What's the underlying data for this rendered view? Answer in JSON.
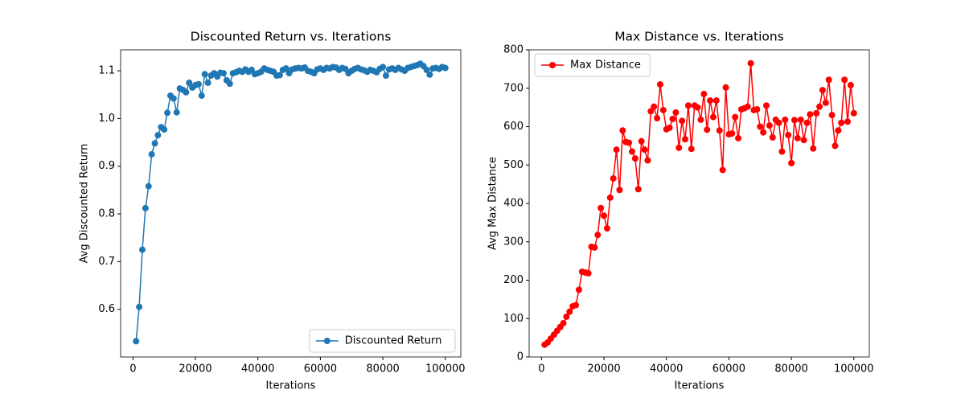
{
  "chart_data": [
    {
      "type": "line",
      "title": "Discounted Return vs. Iterations",
      "xlabel": "Iterations",
      "ylabel": "Avg Discounted Return",
      "x": [
        1000,
        2000,
        3000,
        4000,
        5000,
        6000,
        7000,
        8000,
        9000,
        10000,
        11000,
        12000,
        13000,
        14000,
        15000,
        16000,
        17000,
        18000,
        19000,
        20000,
        21000,
        22000,
        23000,
        24000,
        25000,
        26000,
        27000,
        28000,
        29000,
        30000,
        31000,
        32000,
        33000,
        34000,
        35000,
        36000,
        37000,
        38000,
        39000,
        40000,
        41000,
        42000,
        43000,
        44000,
        45000,
        46000,
        47000,
        48000,
        49000,
        50000,
        51000,
        52000,
        53000,
        54000,
        55000,
        56000,
        57000,
        58000,
        59000,
        60000,
        61000,
        62000,
        63000,
        64000,
        65000,
        66000,
        67000,
        68000,
        69000,
        70000,
        71000,
        72000,
        73000,
        74000,
        75000,
        76000,
        77000,
        78000,
        79000,
        80000,
        81000,
        82000,
        83000,
        84000,
        85000,
        86000,
        87000,
        88000,
        89000,
        90000,
        91000,
        92000,
        93000,
        94000,
        95000,
        96000,
        97000,
        98000,
        99000,
        100000
      ],
      "series": [
        {
          "name": "Discounted Return",
          "color": "#1f77b4",
          "values": [
            0.533,
            0.605,
            0.725,
            0.812,
            0.858,
            0.925,
            0.948,
            0.965,
            0.982,
            0.977,
            1.012,
            1.048,
            1.042,
            1.013,
            1.063,
            1.06,
            1.055,
            1.075,
            1.065,
            1.07,
            1.072,
            1.048,
            1.093,
            1.075,
            1.09,
            1.095,
            1.088,
            1.096,
            1.095,
            1.08,
            1.073,
            1.095,
            1.097,
            1.1,
            1.098,
            1.103,
            1.098,
            1.102,
            1.093,
            1.095,
            1.098,
            1.105,
            1.102,
            1.1,
            1.098,
            1.09,
            1.091,
            1.102,
            1.105,
            1.095,
            1.103,
            1.105,
            1.106,
            1.105,
            1.107,
            1.1,
            1.098,
            1.095,
            1.103,
            1.105,
            1.102,
            1.106,
            1.105,
            1.108,
            1.107,
            1.102,
            1.106,
            1.104,
            1.095,
            1.1,
            1.104,
            1.106,
            1.103,
            1.101,
            1.098,
            1.102,
            1.1,
            1.097,
            1.104,
            1.108,
            1.09,
            1.103,
            1.105,
            1.102,
            1.106,
            1.103,
            1.1,
            1.106,
            1.108,
            1.11,
            1.112,
            1.115,
            1.11,
            1.102,
            1.092,
            1.105,
            1.106,
            1.104,
            1.108,
            1.106
          ]
        }
      ],
      "xlim": [
        -3950,
        104950
      ],
      "ylim": [
        0.5,
        1.144
      ],
      "xticks": [
        0,
        20000,
        40000,
        60000,
        80000,
        100000
      ],
      "yticks": [
        0.6,
        0.7,
        0.8,
        0.9,
        {
          "value": 1,
          "label": "1.0"
        },
        1.1
      ],
      "legend": "lower right"
    },
    {
      "type": "line",
      "title": "Max Distance vs. Iterations",
      "xlabel": "Iterations",
      "ylabel": "Avg Max Distance",
      "x": [
        1000,
        2000,
        3000,
        4000,
        5000,
        6000,
        7000,
        8000,
        9000,
        10000,
        11000,
        12000,
        13000,
        14000,
        15000,
        16000,
        17000,
        18000,
        19000,
        20000,
        21000,
        22000,
        23000,
        24000,
        25000,
        26000,
        27000,
        28000,
        29000,
        30000,
        31000,
        32000,
        33000,
        34000,
        35000,
        36000,
        37000,
        38000,
        39000,
        40000,
        41000,
        42000,
        43000,
        44000,
        45000,
        46000,
        47000,
        48000,
        49000,
        50000,
        51000,
        52000,
        53000,
        54000,
        55000,
        56000,
        57000,
        58000,
        59000,
        60000,
        61000,
        62000,
        63000,
        64000,
        65000,
        66000,
        67000,
        68000,
        69000,
        70000,
        71000,
        72000,
        73000,
        74000,
        75000,
        76000,
        77000,
        78000,
        79000,
        80000,
        81000,
        82000,
        83000,
        84000,
        85000,
        86000,
        87000,
        88000,
        89000,
        90000,
        91000,
        92000,
        93000,
        94000,
        95000,
        96000,
        97000,
        98000,
        99000,
        100000
      ],
      "series": [
        {
          "name": "Max Distance",
          "color": "#ff0000",
          "values": [
            32,
            38,
            48,
            58,
            68,
            78,
            88,
            105,
            118,
            132,
            135,
            175,
            222,
            220,
            218,
            287,
            285,
            318,
            388,
            368,
            335,
            415,
            465,
            540,
            435,
            590,
            560,
            558,
            535,
            517,
            437,
            562,
            540,
            512,
            640,
            652,
            622,
            710,
            643,
            593,
            597,
            620,
            637,
            545,
            615,
            567,
            655,
            542,
            655,
            650,
            618,
            685,
            592,
            668,
            625,
            668,
            590,
            487,
            702,
            580,
            582,
            625,
            570,
            645,
            648,
            652,
            765,
            643,
            645,
            600,
            585,
            655,
            603,
            572,
            618,
            610,
            535,
            618,
            578,
            505,
            617,
            570,
            618,
            565,
            610,
            632,
            543,
            635,
            652,
            695,
            662,
            722,
            630,
            550,
            590,
            610,
            722,
            613,
            708,
            635
          ]
        }
      ],
      "xlim": [
        -3950,
        104950
      ],
      "ylim": [
        0,
        800
      ],
      "xticks": [
        0,
        20000,
        40000,
        60000,
        80000,
        100000
      ],
      "yticks": [
        0,
        100,
        200,
        300,
        400,
        500,
        600,
        700,
        800
      ],
      "legend": "upper left"
    }
  ]
}
